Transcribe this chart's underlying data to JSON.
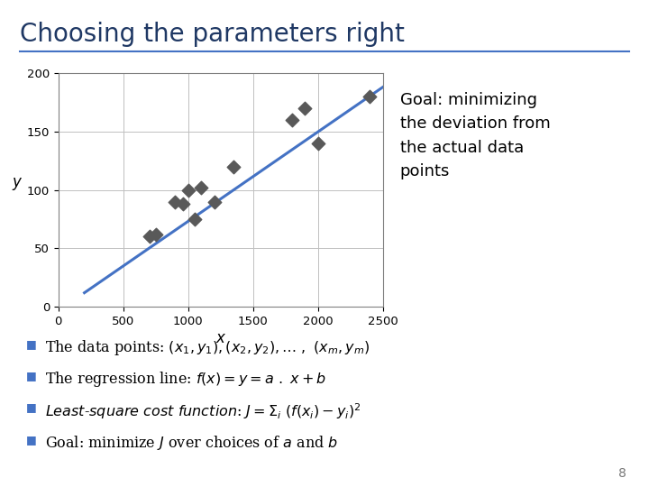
{
  "title": "Choosing the parameters right",
  "title_color": "#1F3864",
  "title_fontsize": 20,
  "separator_color": "#4472C4",
  "scatter_x": [
    700,
    750,
    900,
    960,
    1000,
    1050,
    1100,
    1200,
    1350,
    1800,
    1900,
    2000,
    2400
  ],
  "scatter_y": [
    60,
    62,
    90,
    88,
    100,
    75,
    102,
    90,
    120,
    160,
    170,
    140,
    180
  ],
  "scatter_color": "#595959",
  "scatter_marker": "D",
  "scatter_size": 55,
  "line_x": [
    200,
    2500
  ],
  "line_y": [
    12,
    188
  ],
  "line_color": "#4472C4",
  "line_width": 2.2,
  "xlabel": "x",
  "ylabel": "y",
  "xlim": [
    0,
    2500
  ],
  "ylim": [
    0,
    200
  ],
  "xticks": [
    0,
    500,
    1000,
    1500,
    2000,
    2500
  ],
  "yticks": [
    0,
    50,
    100,
    150,
    200
  ],
  "goal_text": "Goal: minimizing\nthe deviation from\nthe actual data\npoints",
  "goal_fontsize": 13,
  "page_number": "8",
  "bg_color": "#FFFFFF",
  "axis_color": "#808080",
  "grid_color": "#C0C0C0",
  "bullet_color": "#4472C4",
  "bullet_fontsize": 11.5
}
